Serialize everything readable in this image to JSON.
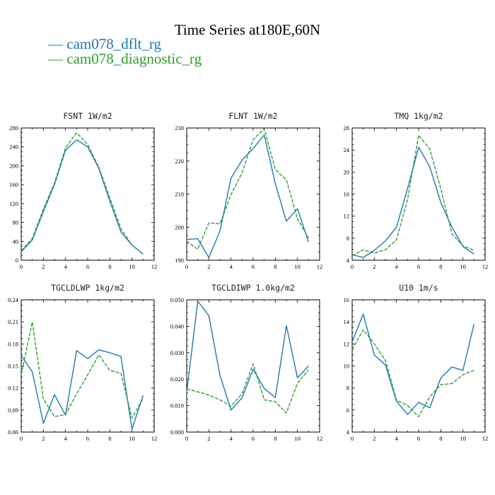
{
  "figure": {
    "title": "Time Series at180E,60N",
    "legend": [
      {
        "label": "— cam078_dflt_rg",
        "color": "#1f77b4"
      },
      {
        "label": "— cam078_diagnostic_rg",
        "color": "#2ca02c"
      }
    ]
  },
  "chart_data": [
    {
      "type": "line",
      "title": "FSNT   1W/m2",
      "x": [
        0,
        1,
        2,
        3,
        4,
        5,
        6,
        7,
        8,
        9,
        10,
        11
      ],
      "xlim": [
        0,
        12
      ],
      "xticks": [
        0,
        2,
        4,
        6,
        8,
        10,
        12
      ],
      "ylim": [
        0,
        280
      ],
      "yticks": [
        0,
        40,
        80,
        120,
        160,
        200,
        240,
        280
      ],
      "ytick_labels": [
        "0",
        "40",
        "80",
        "120",
        "160",
        "200",
        "240",
        "280"
      ],
      "series": [
        {
          "name": "cam078_dflt_rg",
          "color": "#1f77b4",
          "dash": "solid",
          "values": [
            18,
            43,
            103,
            160,
            233,
            255,
            240,
            195,
            125,
            60,
            32,
            13
          ]
        },
        {
          "name": "cam078_diagnostic_rg",
          "color": "#2ca02c",
          "dash": "dashed",
          "values": [
            20,
            46,
            108,
            163,
            238,
            270,
            245,
            197,
            132,
            67,
            32,
            13
          ]
        }
      ]
    },
    {
      "type": "line",
      "title": "FLNT   1W/m2",
      "x": [
        0,
        1,
        2,
        3,
        4,
        5,
        6,
        7,
        8,
        9,
        10,
        11
      ],
      "xlim": [
        0,
        12
      ],
      "xticks": [
        0,
        2,
        4,
        6,
        8,
        10,
        12
      ],
      "ylim": [
        190,
        230
      ],
      "yticks": [
        190,
        200,
        210,
        220,
        230
      ],
      "ytick_labels": [
        "190",
        "200",
        "210",
        "220",
        "230"
      ],
      "series": [
        {
          "name": "cam078_dflt_rg",
          "color": "#1f77b4",
          "dash": "solid",
          "values": [
            196.3,
            196.5,
            190.8,
            198.8,
            214.8,
            220.3,
            223.8,
            227.9,
            213.2,
            201.8,
            205.6,
            195.5
          ]
        },
        {
          "name": "cam078_diagnostic_rg",
          "color": "#2ca02c",
          "dash": "dashed",
          "values": [
            195.8,
            193.3,
            201.3,
            201.0,
            209.8,
            216.5,
            226.5,
            229.8,
            217.4,
            214.3,
            202.5,
            196.7
          ]
        }
      ]
    },
    {
      "type": "line",
      "title": "TMQ   1kg/m2",
      "x": [
        0,
        1,
        2,
        3,
        4,
        5,
        6,
        7,
        8,
        9,
        10,
        11
      ],
      "xlim": [
        0,
        12
      ],
      "xticks": [
        0,
        2,
        4,
        6,
        8,
        10,
        12
      ],
      "ylim": [
        4,
        28
      ],
      "yticks": [
        4,
        8,
        12,
        16,
        20,
        24,
        28
      ],
      "ytick_labels": [
        "4",
        "8",
        "12",
        "16",
        "20",
        "24",
        "28"
      ],
      "series": [
        {
          "name": "cam078_dflt_rg",
          "color": "#1f77b4",
          "dash": "solid",
          "values": [
            5.0,
            4.5,
            5.8,
            7.5,
            10.0,
            17.0,
            24.5,
            21.0,
            14.5,
            10.0,
            6.5,
            5.1
          ]
        },
        {
          "name": "cam078_diagnostic_rg",
          "color": "#2ca02c",
          "dash": "dashed",
          "values": [
            4.8,
            5.9,
            5.3,
            5.9,
            7.7,
            15.0,
            26.7,
            24.2,
            17.0,
            8.8,
            6.6,
            5.8
          ]
        }
      ]
    },
    {
      "type": "line",
      "title": "TGCLDLWP   1kg/m2",
      "x": [
        0,
        1,
        2,
        3,
        4,
        5,
        6,
        7,
        8,
        9,
        10,
        11
      ],
      "xlim": [
        0,
        12
      ],
      "xticks": [
        0,
        2,
        4,
        6,
        8,
        10,
        12
      ],
      "ylim": [
        0.06,
        0.24
      ],
      "yticks": [
        0.06,
        0.09,
        0.12,
        0.15,
        0.18,
        0.21,
        0.24
      ],
      "ytick_labels": [
        "0.06",
        "0.09",
        "0.12",
        "0.15",
        "0.18",
        "0.21",
        "0.24"
      ],
      "series": [
        {
          "name": "cam078_dflt_rg",
          "color": "#1f77b4",
          "dash": "solid",
          "values": [
            0.164,
            0.142,
            0.072,
            0.111,
            0.083,
            0.171,
            0.16,
            0.172,
            0.168,
            0.163,
            0.064,
            0.11
          ]
        },
        {
          "name": "cam078_diagnostic_rg",
          "color": "#2ca02c",
          "dash": "dashed",
          "values": [
            0.138,
            0.21,
            0.105,
            0.081,
            0.084,
            0.112,
            0.138,
            0.165,
            0.144,
            0.14,
            0.079,
            0.106
          ]
        }
      ]
    },
    {
      "type": "line",
      "title": "TGCLDIWP   1.0kg/m2",
      "x": [
        0,
        1,
        2,
        3,
        4,
        5,
        6,
        7,
        8,
        9,
        10,
        11
      ],
      "xlim": [
        0,
        12
      ],
      "xticks": [
        0,
        2,
        4,
        6,
        8,
        10,
        12
      ],
      "ylim": [
        0,
        0.05
      ],
      "yticks": [
        0,
        0.01,
        0.02,
        0.03,
        0.04,
        0.05
      ],
      "ytick_labels": [
        "0.000",
        "0.010",
        "0.020",
        "0.030",
        "0.040",
        "0.050"
      ],
      "series": [
        {
          "name": "cam078_dflt_rg",
          "color": "#1f77b4",
          "dash": "solid",
          "values": [
            0.015,
            0.0495,
            0.044,
            0.0215,
            0.0083,
            0.013,
            0.0238,
            0.0165,
            0.013,
            0.0402,
            0.0205,
            0.025
          ]
        },
        {
          "name": "cam078_diagnostic_rg",
          "color": "#2ca02c",
          "dash": "dashed",
          "values": [
            0.0163,
            0.0152,
            0.014,
            0.0122,
            0.0098,
            0.0145,
            0.0258,
            0.0122,
            0.0115,
            0.0072,
            0.0185,
            0.0235
          ]
        }
      ]
    },
    {
      "type": "line",
      "title": "U10   1m/s",
      "x": [
        0,
        1,
        2,
        3,
        4,
        5,
        6,
        7,
        8,
        9,
        10,
        11
      ],
      "xlim": [
        0,
        12
      ],
      "xticks": [
        0,
        2,
        4,
        6,
        8,
        10,
        12
      ],
      "ylim": [
        4,
        16
      ],
      "yticks": [
        4,
        6,
        8,
        10,
        12,
        14,
        16
      ],
      "ytick_labels": [
        "4",
        "6",
        "8",
        "10",
        "12",
        "14",
        "16"
      ],
      "series": [
        {
          "name": "cam078_dflt_rg",
          "color": "#1f77b4",
          "dash": "solid",
          "values": [
            12.2,
            14.7,
            11.0,
            10.1,
            6.8,
            5.6,
            6.7,
            6.2,
            8.9,
            9.9,
            9.6,
            13.8
          ]
        },
        {
          "name": "cam078_diagnostic_rg",
          "color": "#2ca02c",
          "dash": "dashed",
          "values": [
            11.5,
            13.3,
            12.0,
            10.5,
            6.9,
            6.4,
            5.4,
            7.2,
            8.3,
            8.4,
            9.2,
            9.6
          ]
        }
      ]
    }
  ]
}
